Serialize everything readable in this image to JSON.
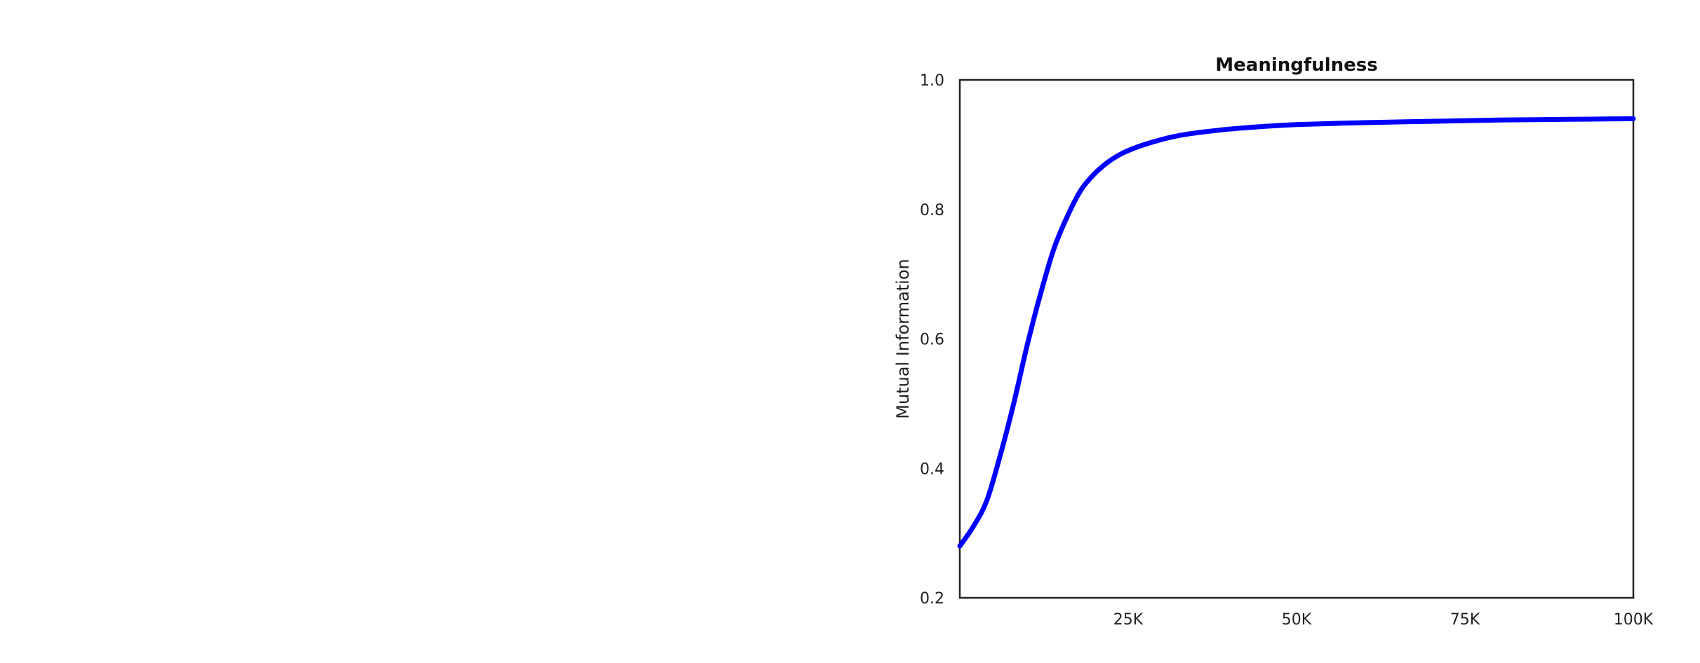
{
  "chart_data": {
    "type": "line",
    "title": "Meaningfulness",
    "xlabel": "",
    "ylabel": "Mutual Information",
    "xlim": [
      0,
      100000
    ],
    "ylim": [
      0.2,
      1.0
    ],
    "x_ticks": [
      {
        "value": 25000,
        "label": "25K"
      },
      {
        "value": 50000,
        "label": "50K"
      },
      {
        "value": 75000,
        "label": "75K"
      },
      {
        "value": 100000,
        "label": "100K"
      }
    ],
    "y_ticks": [
      {
        "value": 0.2,
        "label": "0.2"
      },
      {
        "value": 0.4,
        "label": "0.4"
      },
      {
        "value": 0.6,
        "label": "0.6"
      },
      {
        "value": 0.8,
        "label": "0.8"
      },
      {
        "value": 1.0,
        "label": "1.0"
      }
    ],
    "grid": false,
    "series": [
      {
        "color": "#0000ff",
        "x": [
          0,
          2000,
          4000,
          6000,
          8000,
          10000,
          12000,
          14000,
          16000,
          18000,
          20000,
          22000,
          24000,
          26000,
          28000,
          30000,
          32000,
          35000,
          40000,
          45000,
          50000,
          60000,
          70000,
          80000,
          90000,
          100000
        ],
        "y": [
          0.28,
          0.31,
          0.35,
          0.42,
          0.5,
          0.59,
          0.67,
          0.74,
          0.79,
          0.83,
          0.855,
          0.873,
          0.886,
          0.895,
          0.902,
          0.908,
          0.913,
          0.918,
          0.924,
          0.928,
          0.931,
          0.934,
          0.936,
          0.938,
          0.939,
          0.94
        ]
      }
    ]
  }
}
